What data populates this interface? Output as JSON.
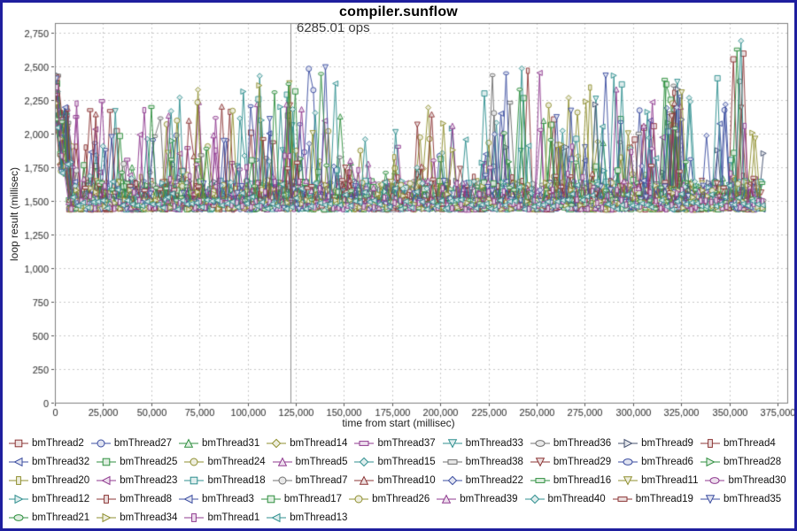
{
  "window": {
    "border_color": "#1f1f9e",
    "background": "#ffffff",
    "grid_color": "#c9c9c9",
    "plot_border_color": "#808080",
    "tick_label_color": "#2a2a2a",
    "marker_line_color": "#8f8f8f"
  },
  "chart_data": {
    "type": "line",
    "title": "compiler.sunflow",
    "annotation": {
      "text": "6285.01 ops",
      "x": 122000
    },
    "marker_line_x": 122000,
    "xlabel": "time from start (millisec)",
    "ylabel": "loop result (millisec)",
    "xlim": [
      0,
      380000
    ],
    "ylim": [
      0,
      2823
    ],
    "x_data_max": 365000,
    "grid": "dashed",
    "legend_position": "bottom",
    "x_ticks": [
      0,
      25000,
      50000,
      75000,
      100000,
      125000,
      150000,
      175000,
      200000,
      225000,
      250000,
      275000,
      300000,
      325000,
      350000,
      375000
    ],
    "x_tick_labels": [
      "0",
      "25,000",
      "50,000",
      "75,000",
      "100,000",
      "125,000",
      "150,000",
      "175,000",
      "200,000",
      "225,000",
      "250,000",
      "275,000",
      "300,000",
      "325,000",
      "350,000",
      "375,000"
    ],
    "y_ticks": [
      0,
      250,
      500,
      750,
      1000,
      1250,
      1500,
      1750,
      2000,
      2250,
      2500,
      2750
    ],
    "y_tick_labels": [
      "0",
      "250",
      "500",
      "750",
      "1,000",
      "1,250",
      "1,500",
      "1,750",
      "2,000",
      "2,250",
      "2,500",
      "2,750"
    ],
    "baseline_band": [
      1436,
      1510
    ],
    "start_spike": [
      2020,
      2440
    ],
    "peak_point": {
      "series": "bmThread40",
      "x": 356000,
      "y": 2690
    },
    "spike_regions": [
      [
        0,
        8000,
        0.9,
        2430
      ],
      [
        8000,
        22000,
        0.7,
        2300
      ],
      [
        22000,
        38000,
        0.6,
        2250
      ],
      [
        38000,
        47000,
        0.5,
        2250
      ],
      [
        47000,
        58000,
        0.3,
        2300
      ],
      [
        58000,
        78000,
        0.8,
        2400
      ],
      [
        78000,
        92000,
        0.5,
        2250
      ],
      [
        92000,
        118000,
        0.7,
        2450
      ],
      [
        118000,
        132000,
        0.8,
        2500
      ],
      [
        132000,
        150000,
        0.7,
        2500
      ],
      [
        150000,
        163000,
        0.4,
        2100
      ],
      [
        163000,
        170000,
        0.2,
        2000
      ],
      [
        170000,
        180000,
        0.5,
        2050
      ],
      [
        180000,
        188000,
        0.2,
        1950
      ],
      [
        188000,
        200000,
        0.6,
        2200
      ],
      [
        200000,
        215000,
        0.5,
        2150
      ],
      [
        215000,
        222000,
        0.2,
        1900
      ],
      [
        222000,
        238000,
        0.8,
        2450
      ],
      [
        238000,
        252000,
        0.7,
        2550
      ],
      [
        252000,
        268000,
        0.6,
        2300
      ],
      [
        268000,
        285000,
        0.7,
        2350
      ],
      [
        285000,
        300000,
        0.7,
        2450
      ],
      [
        300000,
        315000,
        0.6,
        2300
      ],
      [
        315000,
        332000,
        0.7,
        2450
      ],
      [
        332000,
        342000,
        0.4,
        2200
      ],
      [
        342000,
        352000,
        0.6,
        2450
      ],
      [
        352000,
        362000,
        0.7,
        2700
      ],
      [
        362000,
        366000,
        0.4,
        2100
      ]
    ],
    "series": [
      {
        "name": "bmThread2",
        "color": "#8b3434",
        "shape": "square"
      },
      {
        "name": "bmThread27",
        "color": "#3b4da0",
        "shape": "circle"
      },
      {
        "name": "bmThread31",
        "color": "#2f8f3f",
        "shape": "triangle-up"
      },
      {
        "name": "bmThread14",
        "color": "#8f8f2f",
        "shape": "diamond"
      },
      {
        "name": "bmThread37",
        "color": "#8f3a8f",
        "shape": "rect-h"
      },
      {
        "name": "bmThread33",
        "color": "#2f8f8f",
        "shape": "triangle-down"
      },
      {
        "name": "bmThread36",
        "color": "#707070",
        "shape": "ellipse"
      },
      {
        "name": "bmThread9",
        "color": "#44506e",
        "shape": "triangle-right"
      },
      {
        "name": "bmThread4",
        "color": "#8b3434",
        "shape": "rect-v"
      },
      {
        "name": "bmThread32",
        "color": "#3b4da0",
        "shape": "triangle-left"
      },
      {
        "name": "bmThread25",
        "color": "#2f8f3f",
        "shape": "square"
      },
      {
        "name": "bmThread24",
        "color": "#8f8f2f",
        "shape": "circle"
      },
      {
        "name": "bmThread5",
        "color": "#8f3a8f",
        "shape": "triangle-up"
      },
      {
        "name": "bmThread15",
        "color": "#2f8f8f",
        "shape": "diamond"
      },
      {
        "name": "bmThread38",
        "color": "#707070",
        "shape": "rect-h"
      },
      {
        "name": "bmThread29",
        "color": "#8b3434",
        "shape": "triangle-down"
      },
      {
        "name": "bmThread6",
        "color": "#3b4da0",
        "shape": "ellipse"
      },
      {
        "name": "bmThread28",
        "color": "#2f8f3f",
        "shape": "triangle-right"
      },
      {
        "name": "bmThread20",
        "color": "#8f8f2f",
        "shape": "rect-v"
      },
      {
        "name": "bmThread23",
        "color": "#8f3a8f",
        "shape": "triangle-left"
      },
      {
        "name": "bmThread18",
        "color": "#2f8f8f",
        "shape": "square"
      },
      {
        "name": "bmThread7",
        "color": "#707070",
        "shape": "circle"
      },
      {
        "name": "bmThread10",
        "color": "#8b3434",
        "shape": "triangle-up"
      },
      {
        "name": "bmThread22",
        "color": "#3b4da0",
        "shape": "diamond"
      },
      {
        "name": "bmThread16",
        "color": "#2f8f3f",
        "shape": "rect-h"
      },
      {
        "name": "bmThread11",
        "color": "#8f8f2f",
        "shape": "triangle-down"
      },
      {
        "name": "bmThread30",
        "color": "#8f3a8f",
        "shape": "ellipse"
      },
      {
        "name": "bmThread12",
        "color": "#2f8f8f",
        "shape": "triangle-right"
      },
      {
        "name": "bmThread8",
        "color": "#8b3434",
        "shape": "rect-v"
      },
      {
        "name": "bmThread3",
        "color": "#3b4da0",
        "shape": "triangle-left"
      },
      {
        "name": "bmThread17",
        "color": "#2f8f3f",
        "shape": "square"
      },
      {
        "name": "bmThread26",
        "color": "#8f8f2f",
        "shape": "circle"
      },
      {
        "name": "bmThread39",
        "color": "#8f3a8f",
        "shape": "triangle-up"
      },
      {
        "name": "bmThread40",
        "color": "#2f8f8f",
        "shape": "diamond"
      },
      {
        "name": "bmThread19",
        "color": "#8b3434",
        "shape": "rect-h"
      },
      {
        "name": "bmThread35",
        "color": "#3b4da0",
        "shape": "triangle-down"
      },
      {
        "name": "bmThread21",
        "color": "#2f8f3f",
        "shape": "ellipse"
      },
      {
        "name": "bmThread34",
        "color": "#8f8f2f",
        "shape": "triangle-right"
      },
      {
        "name": "bmThread1",
        "color": "#8f3a8f",
        "shape": "rect-v"
      },
      {
        "name": "bmThread13",
        "color": "#2f8f8f",
        "shape": "triangle-left"
      }
    ]
  }
}
